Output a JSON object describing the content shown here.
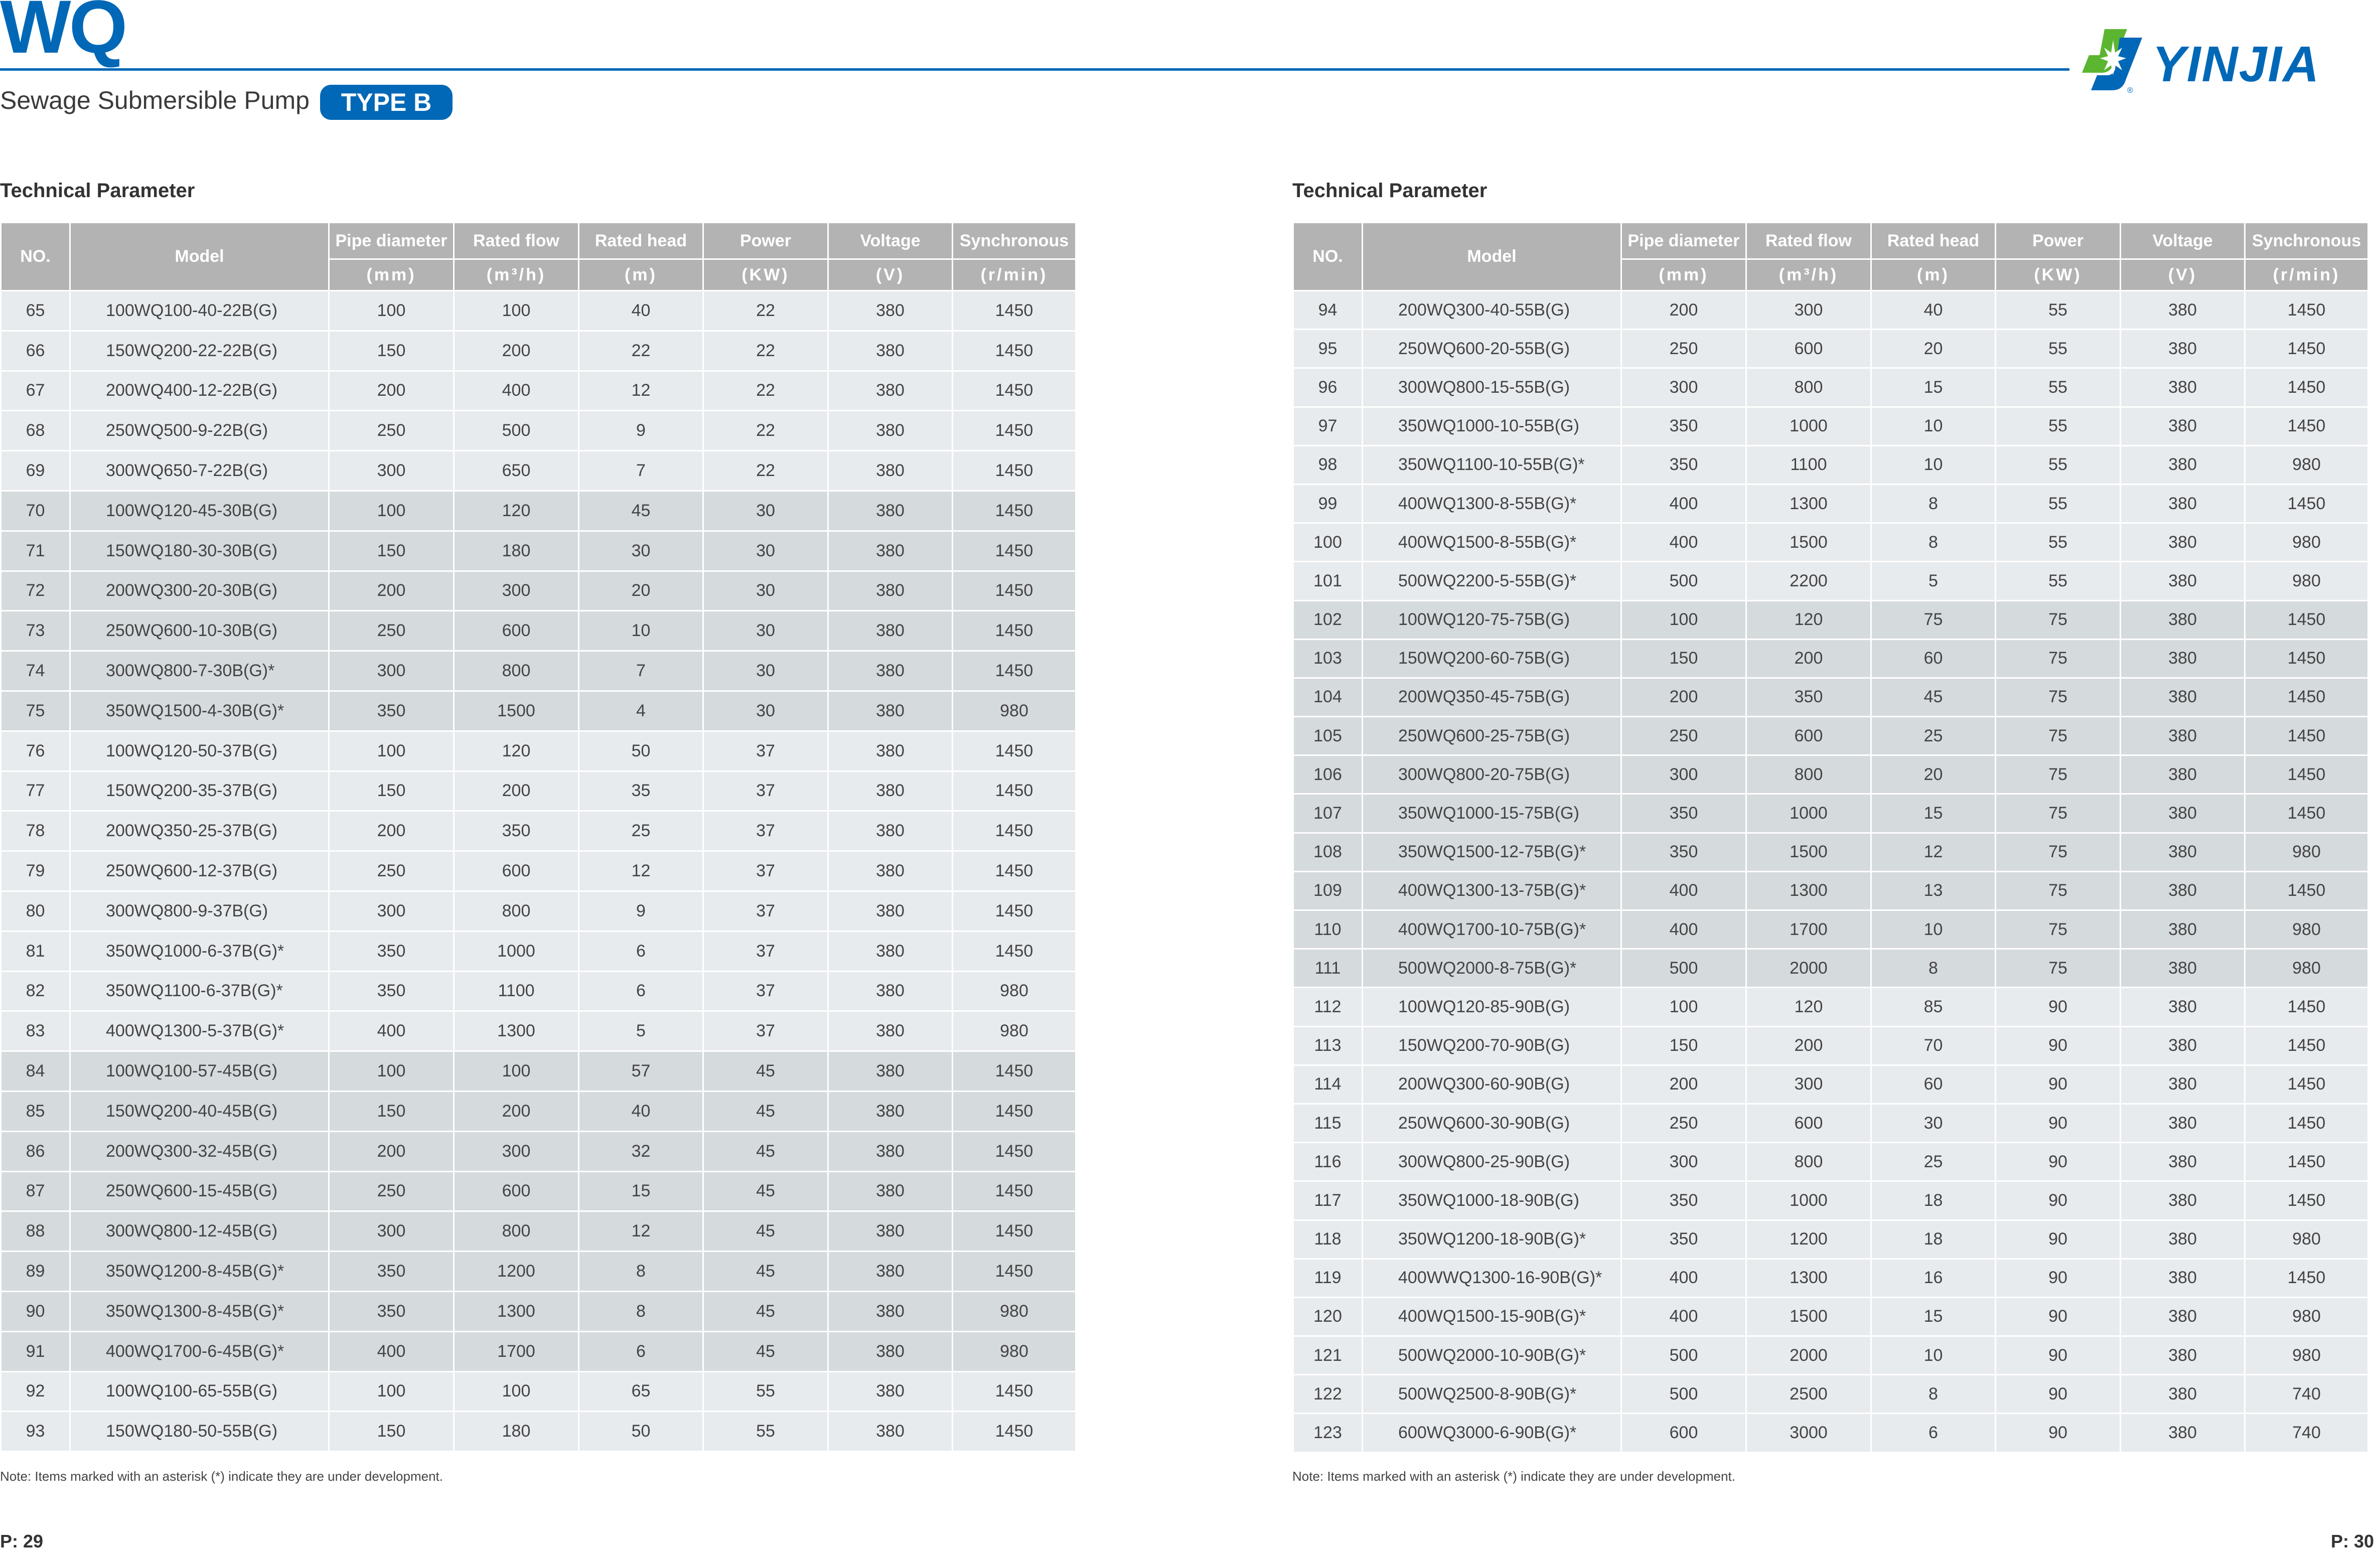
{
  "header": {
    "series": "WQ",
    "subtitle": "Sewage Submersible Pump",
    "type_badge": "TYPE B",
    "logo": {
      "text": "YINJIA",
      "colors": {
        "blue": "#0068b7",
        "green": "#5cb531"
      }
    }
  },
  "columns": {
    "no": "NO.",
    "model": "Model",
    "pipe": "Pipe diameter",
    "flow": "Rated flow",
    "head": "Rated head",
    "power": "Power",
    "voltage": "Voltage",
    "sync": "Synchronous",
    "units": [
      "(mm)",
      "(m³/h)",
      "(m)",
      "(KW)",
      "(V)",
      "(r/min)"
    ]
  },
  "left": {
    "section_title": "Technical Parameter",
    "rows": [
      [
        "65",
        "100WQ100-40-22B(G)",
        "100",
        "100",
        "40",
        "22",
        "380",
        "1450"
      ],
      [
        "66",
        "150WQ200-22-22B(G)",
        "150",
        "200",
        "22",
        "22",
        "380",
        "1450"
      ],
      [
        "67",
        "200WQ400-12-22B(G)",
        "200",
        "400",
        "12",
        "22",
        "380",
        "1450"
      ],
      [
        "68",
        "250WQ500-9-22B(G)",
        "250",
        "500",
        "9",
        "22",
        "380",
        "1450"
      ],
      [
        "69",
        "300WQ650-7-22B(G)",
        "300",
        "650",
        "7",
        "22",
        "380",
        "1450"
      ],
      [
        "70",
        "100WQ120-45-30B(G)",
        "100",
        "120",
        "45",
        "30",
        "380",
        "1450"
      ],
      [
        "71",
        "150WQ180-30-30B(G)",
        "150",
        "180",
        "30",
        "30",
        "380",
        "1450"
      ],
      [
        "72",
        "200WQ300-20-30B(G)",
        "200",
        "300",
        "20",
        "30",
        "380",
        "1450"
      ],
      [
        "73",
        "250WQ600-10-30B(G)",
        "250",
        "600",
        "10",
        "30",
        "380",
        "1450"
      ],
      [
        "74",
        "300WQ800-7-30B(G)*",
        "300",
        "800",
        "7",
        "30",
        "380",
        "1450"
      ],
      [
        "75",
        "350WQ1500-4-30B(G)*",
        "350",
        "1500",
        "4",
        "30",
        "380",
        "980"
      ],
      [
        "76",
        "100WQ120-50-37B(G)",
        "100",
        "120",
        "50",
        "37",
        "380",
        "1450"
      ],
      [
        "77",
        "150WQ200-35-37B(G)",
        "150",
        "200",
        "35",
        "37",
        "380",
        "1450"
      ],
      [
        "78",
        "200WQ350-25-37B(G)",
        "200",
        "350",
        "25",
        "37",
        "380",
        "1450"
      ],
      [
        "79",
        "250WQ600-12-37B(G)",
        "250",
        "600",
        "12",
        "37",
        "380",
        "1450"
      ],
      [
        "80",
        "300WQ800-9-37B(G)",
        "300",
        "800",
        "9",
        "37",
        "380",
        "1450"
      ],
      [
        "81",
        "350WQ1000-6-37B(G)*",
        "350",
        "1000",
        "6",
        "37",
        "380",
        "1450"
      ],
      [
        "82",
        "350WQ1100-6-37B(G)*",
        "350",
        "1100",
        "6",
        "37",
        "380",
        "980"
      ],
      [
        "83",
        "400WQ1300-5-37B(G)*",
        "400",
        "1300",
        "5",
        "37",
        "380",
        "980"
      ],
      [
        "84",
        "100WQ100-57-45B(G)",
        "100",
        "100",
        "57",
        "45",
        "380",
        "1450"
      ],
      [
        "85",
        "150WQ200-40-45B(G)",
        "150",
        "200",
        "40",
        "45",
        "380",
        "1450"
      ],
      [
        "86",
        "200WQ300-32-45B(G)",
        "200",
        "300",
        "32",
        "45",
        "380",
        "1450"
      ],
      [
        "87",
        "250WQ600-15-45B(G)",
        "250",
        "600",
        "15",
        "45",
        "380",
        "1450"
      ],
      [
        "88",
        "300WQ800-12-45B(G)",
        "300",
        "800",
        "12",
        "45",
        "380",
        "1450"
      ],
      [
        "89",
        "350WQ1200-8-45B(G)*",
        "350",
        "1200",
        "8",
        "45",
        "380",
        "1450"
      ],
      [
        "90",
        "350WQ1300-8-45B(G)*",
        "350",
        "1300",
        "8",
        "45",
        "380",
        "980"
      ],
      [
        "91",
        "400WQ1700-6-45B(G)*",
        "400",
        "1700",
        "6",
        "45",
        "380",
        "980"
      ],
      [
        "92",
        "100WQ100-65-55B(G)",
        "100",
        "100",
        "65",
        "55",
        "380",
        "1450"
      ],
      [
        "93",
        "150WQ180-50-55B(G)",
        "150",
        "180",
        "50",
        "55",
        "380",
        "1450"
      ]
    ],
    "note": "Note: Items marked with an asterisk (*) indicate they are under development.",
    "page": "P: 29"
  },
  "right": {
    "section_title": "Technical Parameter",
    "rows": [
      [
        "94",
        "200WQ300-40-55B(G)",
        "200",
        "300",
        "40",
        "55",
        "380",
        "1450"
      ],
      [
        "95",
        "250WQ600-20-55B(G)",
        "250",
        "600",
        "20",
        "55",
        "380",
        "1450"
      ],
      [
        "96",
        "300WQ800-15-55B(G)",
        "300",
        "800",
        "15",
        "55",
        "380",
        "1450"
      ],
      [
        "97",
        "350WQ1000-10-55B(G)",
        "350",
        "1000",
        "10",
        "55",
        "380",
        "1450"
      ],
      [
        "98",
        "350WQ1100-10-55B(G)*",
        "350",
        "1100",
        "10",
        "55",
        "380",
        "980"
      ],
      [
        "99",
        "400WQ1300-8-55B(G)*",
        "400",
        "1300",
        "8",
        "55",
        "380",
        "1450"
      ],
      [
        "100",
        "400WQ1500-8-55B(G)*",
        "400",
        "1500",
        "8",
        "55",
        "380",
        "980"
      ],
      [
        "101",
        "500WQ2200-5-55B(G)*",
        "500",
        "2200",
        "5",
        "55",
        "380",
        "980"
      ],
      [
        "102",
        "100WQ120-75-75B(G)",
        "100",
        "120",
        "75",
        "75",
        "380",
        "1450"
      ],
      [
        "103",
        "150WQ200-60-75B(G)",
        "150",
        "200",
        "60",
        "75",
        "380",
        "1450"
      ],
      [
        "104",
        "200WQ350-45-75B(G)",
        "200",
        "350",
        "45",
        "75",
        "380",
        "1450"
      ],
      [
        "105",
        "250WQ600-25-75B(G)",
        "250",
        "600",
        "25",
        "75",
        "380",
        "1450"
      ],
      [
        "106",
        "300WQ800-20-75B(G)",
        "300",
        "800",
        "20",
        "75",
        "380",
        "1450"
      ],
      [
        "107",
        "350WQ1000-15-75B(G)",
        "350",
        "1000",
        "15",
        "75",
        "380",
        "1450"
      ],
      [
        "108",
        "350WQ1500-12-75B(G)*",
        "350",
        "1500",
        "12",
        "75",
        "380",
        "980"
      ],
      [
        "109",
        "400WQ1300-13-75B(G)*",
        "400",
        "1300",
        "13",
        "75",
        "380",
        "1450"
      ],
      [
        "110",
        "400WQ1700-10-75B(G)*",
        "400",
        "1700",
        "10",
        "75",
        "380",
        "980"
      ],
      [
        "111",
        "500WQ2000-8-75B(G)*",
        "500",
        "2000",
        "8",
        "75",
        "380",
        "980"
      ],
      [
        "112",
        "100WQ120-85-90B(G)",
        "100",
        "120",
        "85",
        "90",
        "380",
        "1450"
      ],
      [
        "113",
        "150WQ200-70-90B(G)",
        "150",
        "200",
        "70",
        "90",
        "380",
        "1450"
      ],
      [
        "114",
        "200WQ300-60-90B(G)",
        "200",
        "300",
        "60",
        "90",
        "380",
        "1450"
      ],
      [
        "115",
        "250WQ600-30-90B(G)",
        "250",
        "600",
        "30",
        "90",
        "380",
        "1450"
      ],
      [
        "116",
        "300WQ800-25-90B(G)",
        "300",
        "800",
        "25",
        "90",
        "380",
        "1450"
      ],
      [
        "117",
        "350WQ1000-18-90B(G)",
        "350",
        "1000",
        "18",
        "90",
        "380",
        "1450"
      ],
      [
        "118",
        "350WQ1200-18-90B(G)*",
        "350",
        "1200",
        "18",
        "90",
        "380",
        "980"
      ],
      [
        "119",
        "400WWQ1300-16-90B(G)*",
        "400",
        "1300",
        "16",
        "90",
        "380",
        "1450"
      ],
      [
        "120",
        "400WQ1500-15-90B(G)*",
        "400",
        "1500",
        "15",
        "90",
        "380",
        "980"
      ],
      [
        "121",
        "500WQ2000-10-90B(G)*",
        "500",
        "2000",
        "10",
        "90",
        "380",
        "980"
      ],
      [
        "122",
        "500WQ2500-8-90B(G)*",
        "500",
        "2500",
        "8",
        "90",
        "380",
        "740"
      ],
      [
        "123",
        "600WQ3000-6-90B(G)*",
        "600",
        "3000",
        "6",
        "90",
        "380",
        "740"
      ]
    ],
    "note": "Note: Items marked with an asterisk (*) indicate they are under development.",
    "page": "P: 30"
  },
  "colors": {
    "accent": "#0068b7",
    "header_bg": "#b3b3b3",
    "row_light": "#e8ebee",
    "row_dark": "#d5dadd"
  }
}
